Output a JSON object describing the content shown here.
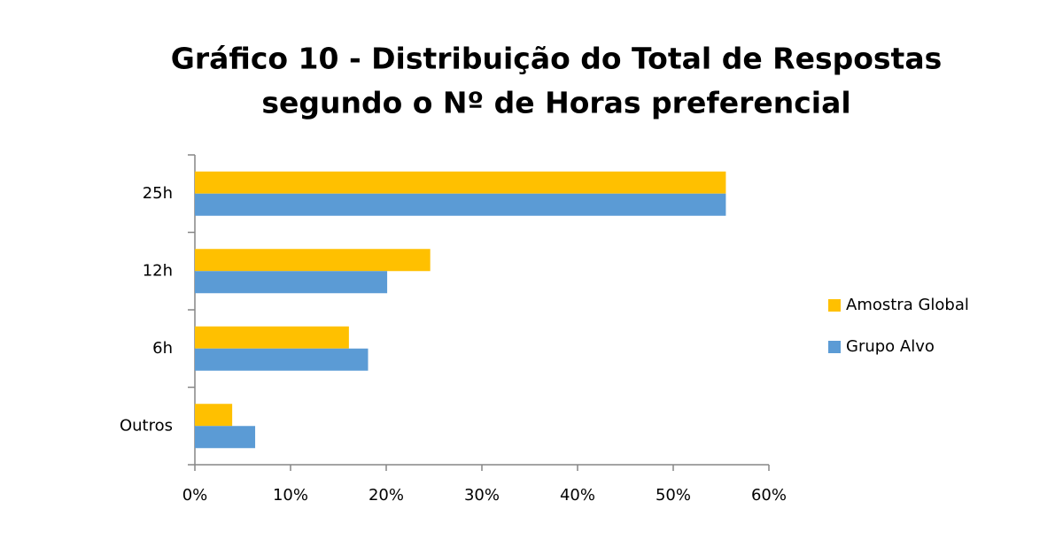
{
  "chart_data": {
    "type": "bar",
    "orientation": "horizontal",
    "title": [
      "Gráfico 10 - Distribuição do Total de Respostas",
      "segundo o Nº de Horas preferencial"
    ],
    "categories": [
      "25h",
      "12h",
      "6h",
      "Outros"
    ],
    "series": [
      {
        "name": "Amostra Global",
        "color": "#ffc000",
        "values": [
          55.5,
          24.6,
          16.1,
          3.9
        ]
      },
      {
        "name": "Grupo Alvo",
        "color": "#5b9bd5",
        "values": [
          55.5,
          20.1,
          18.1,
          6.3
        ]
      }
    ],
    "xlim": [
      0,
      60
    ],
    "xticks": [
      {
        "value": 0,
        "label": "0%"
      },
      {
        "value": 10,
        "label": "10%"
      },
      {
        "value": 20,
        "label": "20%"
      },
      {
        "value": 30,
        "label": "30%"
      },
      {
        "value": 40,
        "label": "40%"
      },
      {
        "value": 50,
        "label": "50%"
      },
      {
        "value": 60,
        "label": "60%"
      }
    ],
    "grid": false,
    "legend": "right"
  }
}
